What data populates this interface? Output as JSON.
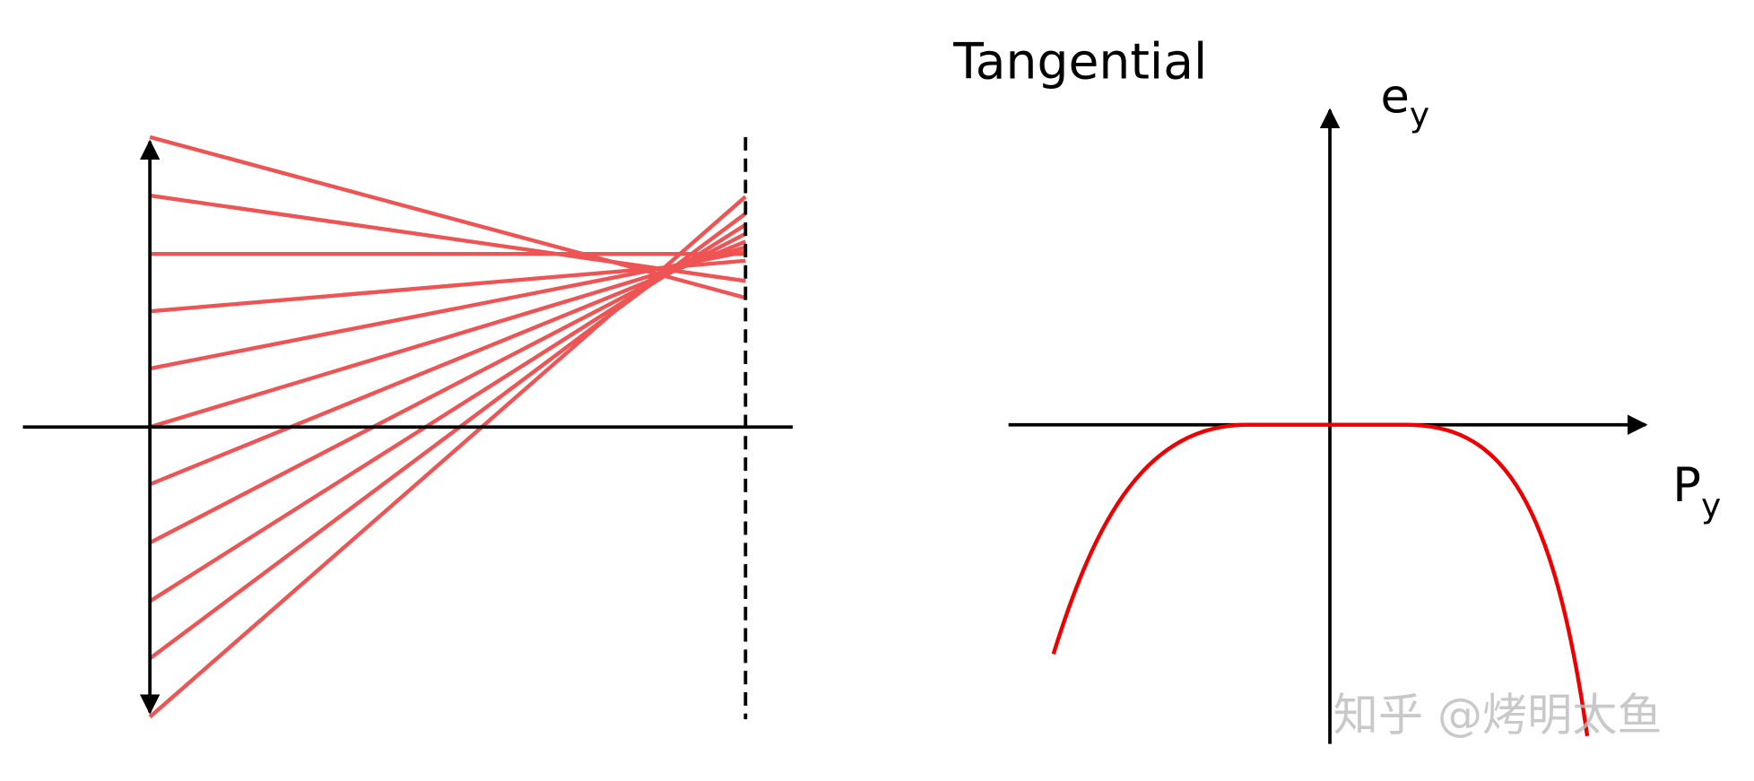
{
  "title": "Tangential",
  "y_axis_label": {
    "text": "e",
    "subscript": "y"
  },
  "x_axis_label": {
    "text": "P",
    "subscript": "y"
  },
  "watermark": "知乎 @烤明太鱼"
}
